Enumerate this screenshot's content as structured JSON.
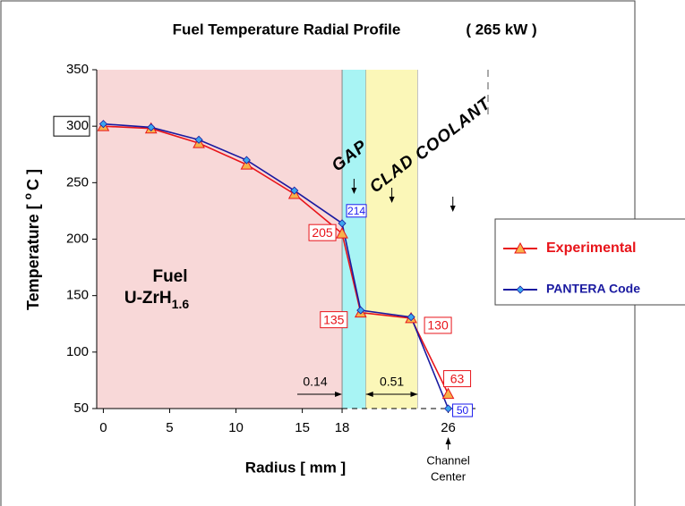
{
  "chart_data": {
    "type": "line",
    "title": "Fuel Temperature Radial Profile",
    "subtitle": "( 265 kW )",
    "xlabel": "Radius [ mm ]",
    "ylabel": {
      "text": "Temperature [ ",
      "sup": "o",
      "end": "C ]"
    },
    "xlim": [
      -0.5,
      29
    ],
    "ylim": [
      50,
      350
    ],
    "xticks": [
      0,
      5,
      10,
      15,
      18,
      26
    ],
    "yticks": [
      50,
      100,
      150,
      200,
      250,
      300,
      350
    ],
    "legend": "right",
    "regions": [
      {
        "label": "GAP",
        "start": 18,
        "end": 19.8,
        "color": "#a8f4f4"
      },
      {
        "label": "CLAD",
        "start": 19.8,
        "end": 23.7,
        "color": "#fbf7b8"
      },
      {
        "label": "COOLANT",
        "start": 23.7,
        "end": 29,
        "color": "#ffffff"
      }
    ],
    "fuel_color": "#f8d8d8",
    "fuel_label": {
      "line1": "Fuel",
      "line2": "U-ZrH",
      "sub": "1.6"
    },
    "dimensions": [
      {
        "label": "0.14"
      },
      {
        "label": "0.51"
      }
    ],
    "channel_label": [
      "Channel",
      "Center"
    ],
    "x": [
      0,
      3.6,
      7.2,
      10.8,
      14.4,
      18,
      19.4,
      23.2,
      26
    ],
    "series": [
      {
        "name": "Experimental",
        "color": "#e8141a",
        "marker": "triangle",
        "marker_color": "#f7b24a",
        "values": [
          300,
          298,
          285,
          266,
          240,
          205,
          135,
          130,
          63
        ],
        "value_labels": [
          null,
          null,
          null,
          null,
          null,
          "205",
          "135",
          "130",
          "63"
        ]
      },
      {
        "name": "PANTERA Code",
        "color": "#1a1aa0",
        "marker": "diamond",
        "marker_color": "#3aa6ee",
        "values": [
          302,
          299,
          288,
          270,
          243,
          214,
          137,
          131,
          50
        ],
        "value_labels": [
          null,
          null,
          null,
          null,
          null,
          "214",
          null,
          null,
          "50"
        ]
      }
    ]
  }
}
